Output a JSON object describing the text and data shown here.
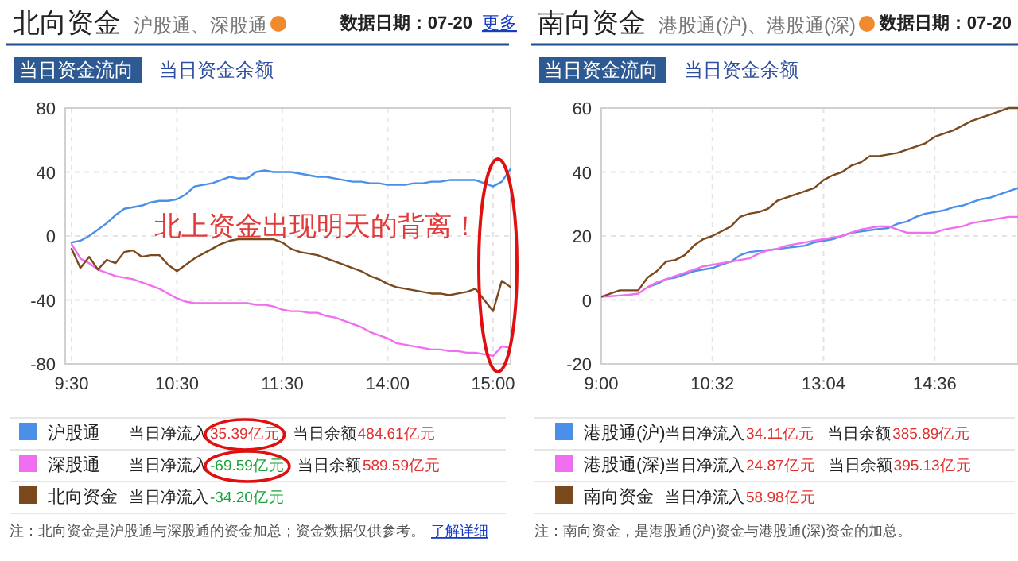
{
  "chart_data": [
    {
      "type": "line",
      "title": "北向资金",
      "subtitle": "沪股通、深股通",
      "annotations": [
        "数据日期：07-20",
        "更多",
        "当日资金流向",
        "当日资金余额",
        "北上资金出现明天的背离！",
        "当日净流入",
        "35.39亿元",
        "当日余额",
        "484.61亿元",
        "当日净流入",
        "-69.59亿元",
        "当日余额",
        "589.59亿元",
        "当日净流入",
        "-34.20亿元",
        "注：北向资金是沪股通与深股通的资金加总；资金数据仅供参考。",
        "了解详细"
      ],
      "categories": [
        "9:30",
        null,
        null,
        null,
        null,
        null,
        null,
        null,
        null,
        null,
        null,
        null,
        "10:30",
        null,
        null,
        null,
        null,
        null,
        null,
        null,
        null,
        null,
        null,
        null,
        "11:30",
        null,
        null,
        null,
        null,
        null,
        null,
        null,
        null,
        null,
        null,
        null,
        "14:00",
        null,
        null,
        null,
        null,
        null,
        null,
        null,
        null,
        null,
        null,
        null,
        "15:00",
        null,
        null
      ],
      "ylim": [
        -80,
        80
      ],
      "yticks": [
        -80,
        -40,
        0,
        40,
        80
      ],
      "grid": true,
      "legend": "bottom",
      "line_style": "solid",
      "marker": "none",
      "series": [
        {
          "name": "沪股通",
          "color": "#4a8fe8",
          "values": [
            -4,
            -3,
            0,
            4,
            8,
            13,
            17,
            18,
            19,
            21,
            22,
            22,
            23,
            26,
            31,
            32,
            33,
            35,
            37,
            36,
            36,
            40,
            41,
            40,
            40,
            40,
            39,
            38,
            37,
            37,
            36,
            35,
            34,
            34,
            33,
            33,
            32,
            32,
            32,
            33,
            33,
            34,
            34,
            35,
            35,
            35,
            35,
            33,
            31,
            34,
            42
          ]
        },
        {
          "name": "深股通",
          "color": "#f06ef0",
          "values": [
            -5,
            -14,
            -17,
            -21,
            -23,
            -25,
            -26,
            -27,
            -29,
            -31,
            -33,
            -36,
            -39,
            -41,
            -42,
            -42,
            -42,
            -42,
            -42,
            -42,
            -42,
            -43,
            -43,
            -44,
            -46,
            -47,
            -47,
            -48,
            -48,
            -50,
            -51,
            -53,
            -55,
            -57,
            -60,
            -62,
            -64,
            -67,
            -68,
            -69,
            -70,
            -71,
            -71,
            -72,
            -72,
            -73,
            -73,
            -74,
            -75,
            -69,
            -70
          ]
        },
        {
          "name": "北向资金",
          "color": "#7a4a1e",
          "values": [
            -8,
            -20,
            -13,
            -21,
            -15,
            -17,
            -10,
            -9,
            -13,
            -12,
            -12,
            -18,
            -22,
            -18,
            -14,
            -11,
            -8,
            -5,
            -3,
            -2,
            -2,
            -2,
            -2,
            -2,
            -4,
            -8,
            -10,
            -11,
            -12,
            -14,
            -16,
            -18,
            -20,
            -22,
            -25,
            -27,
            -30,
            -32,
            -33,
            -34,
            -35,
            -36,
            -36,
            -37,
            -36,
            -35,
            -33,
            -40,
            -47,
            -28,
            -32
          ]
        }
      ]
    },
    {
      "type": "line",
      "title": "南向资金",
      "subtitle": "港股通(沪)、港股通(深)",
      "annotations": [
        "数据日期：07-20",
        "当日资金流向",
        "当日资金余额",
        "当日净流入",
        "34.11亿元",
        "当日余额",
        "385.89亿元",
        "当日净流入",
        "24.87亿元",
        "当日余额",
        "395.13亿元",
        "当日净流入",
        "58.98亿元",
        "注：南向资金，是港股通(沪)资金与港股通(深)资金的加总。"
      ],
      "categories": [
        "9:00",
        null,
        null,
        null,
        null,
        null,
        null,
        null,
        null,
        null,
        null,
        null,
        "10:32",
        null,
        null,
        null,
        null,
        null,
        null,
        null,
        null,
        null,
        null,
        null,
        "13:04",
        null,
        null,
        null,
        null,
        null,
        null,
        null,
        null,
        null,
        null,
        null,
        "14:36",
        null,
        null,
        null,
        null,
        null,
        null,
        null,
        null,
        null
      ],
      "ylim": [
        -20,
        60
      ],
      "yticks": [
        -20,
        0,
        20,
        40,
        60
      ],
      "grid": true,
      "legend": "bottom",
      "line_style": "solid",
      "marker": "none",
      "series": [
        {
          "name": "港股通(沪)",
          "color": "#4a8fe8",
          "values": [
            null,
            null,
            null,
            null,
            null,
            4,
            5,
            6.5,
            7,
            8,
            9,
            9.5,
            10,
            11,
            12,
            14,
            15,
            15.3,
            15.6,
            15.9,
            16.3,
            16.6,
            17,
            18,
            18.5,
            19,
            20,
            21,
            21.4,
            21.8,
            22.2,
            22.5,
            23.8,
            24.5,
            26,
            27,
            27.5,
            28,
            29,
            29.5,
            30.5,
            31.5,
            32,
            33,
            34,
            35
          ]
        },
        {
          "name": "港股通(深)",
          "color": "#f06ef0",
          "values": [
            1,
            1.2,
            1.4,
            1.6,
            2,
            4,
            5.5,
            6.5,
            7.5,
            8.5,
            9.5,
            10.5,
            11,
            11.5,
            12,
            12.5,
            13,
            14.5,
            15.5,
            16,
            17,
            17.5,
            18,
            18.5,
            19,
            19.5,
            20,
            21,
            22,
            22.5,
            23,
            23,
            22,
            21,
            21,
            21,
            21,
            22,
            22.5,
            23,
            24,
            24.5,
            25,
            25.5,
            26,
            26
          ]
        },
        {
          "name": "南向资金",
          "color": "#7a4a1e",
          "values": [
            1,
            2,
            3,
            3,
            3,
            7,
            9,
            12,
            12.5,
            14,
            17,
            19,
            20,
            21.5,
            23,
            26,
            27,
            27.5,
            28.5,
            31,
            32,
            33,
            34,
            35,
            37.5,
            39,
            40,
            42,
            43,
            45,
            45,
            45.5,
            46,
            47,
            48,
            49,
            51,
            52,
            53,
            54.5,
            56,
            57,
            58,
            59,
            60,
            60
          ]
        }
      ]
    }
  ]
}
